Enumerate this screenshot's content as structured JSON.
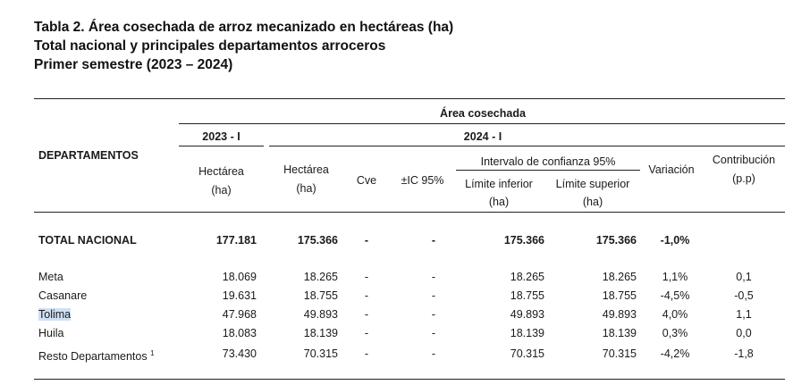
{
  "titles": {
    "line1": "Tabla 2. Área cosechada de arroz mecanizado en hectáreas (ha)",
    "line2": "Total nacional y principales departamentos arroceros",
    "line3": "Primer semestre (2023 – 2024)"
  },
  "header": {
    "area_cosechada": "Área cosechada",
    "period_2023": "2023 - I",
    "period_2024": "2024 - I",
    "departamentos": "DEPARTAMENTOS",
    "hectarea": "Hectárea",
    "ha": "(ha)",
    "cve": "Cve",
    "ic95": "±IC 95%",
    "intervalo": "Intervalo de confianza 95%",
    "limite_inferior": "Límite inferior",
    "limite_superior": "Límite superior",
    "variacion": "Variación",
    "contribucion": "Contribución",
    "pp": "(p.p)"
  },
  "total": {
    "label": "TOTAL NACIONAL",
    "ha2023": "177.181",
    "ha2024": "175.366",
    "cve": "-",
    "ic": "-",
    "li": "175.366",
    "ls": "175.366",
    "var": "-1,0%",
    "contrib": ""
  },
  "rows": [
    {
      "label": "Meta",
      "ha2023": "18.069",
      "ha2024": "18.265",
      "cve": "-",
      "ic": "-",
      "li": "18.265",
      "ls": "18.265",
      "var": "1,1%",
      "contrib": "0,1"
    },
    {
      "label": "Casanare",
      "ha2023": "19.631",
      "ha2024": "18.755",
      "cve": "-",
      "ic": "-",
      "li": "18.755",
      "ls": "18.755",
      "var": "-4,5%",
      "contrib": "-0,5"
    },
    {
      "label": "Tolima",
      "ha2023": "47.968",
      "ha2024": "49.893",
      "cve": "-",
      "ic": "-",
      "li": "49.893",
      "ls": "49.893",
      "var": "4,0%",
      "contrib": "1,1"
    },
    {
      "label": "Huila",
      "ha2023": "18.083",
      "ha2024": "18.139",
      "cve": "-",
      "ic": "-",
      "li": "18.139",
      "ls": "18.139",
      "var": "0,3%",
      "contrib": "0,0"
    },
    {
      "label": "Resto Departamentos",
      "footnote": "1",
      "ha2023": "73.430",
      "ha2024": "70.315",
      "cve": "-",
      "ic": "-",
      "li": "70.315",
      "ls": "70.315",
      "var": "-4,2%",
      "contrib": "-1,8"
    }
  ]
}
